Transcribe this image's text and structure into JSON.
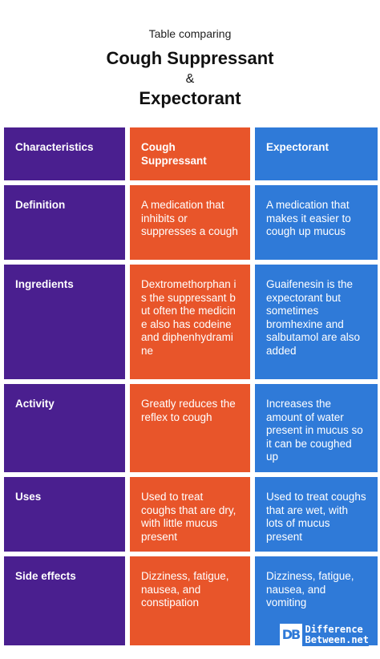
{
  "header": {
    "subtitle": "Table comparing",
    "title_line1": "Cough Suppressant",
    "ampersand": "&",
    "title_line2": "Expectorant"
  },
  "table": {
    "columns": [
      "Characteristics",
      "Cough Suppressant",
      "Expectorant"
    ],
    "rows": [
      {
        "label": "Definition",
        "cough_suppressant": "A medication that inhibits or suppresses a cough",
        "expectorant": "A medication that makes it easier to cough up mucus"
      },
      {
        "label": "Ingredients",
        "cough_suppressant": "Dextromethorphan is the suppressant but often the medicine also has codeine and diphenhydramine",
        "expectorant": "Guaifenesin is the expectorant but sometimes bromhexine and salbutamol are also added"
      },
      {
        "label": "Activity",
        "cough_suppressant": "Greatly reduces the reflex to cough",
        "expectorant": "Increases the amount of water present in mucus so it can be coughed up"
      },
      {
        "label": "Uses",
        "cough_suppressant": "Used to treat coughs that are dry, with little mucus present",
        "expectorant": "Used to treat coughs that are wet, with lots of mucus present"
      },
      {
        "label": "Side effects",
        "cough_suppressant": "Dizziness, fatigue, nausea, and constipation",
        "expectorant": "Dizziness, fatigue, nausea, and vomiting"
      }
    ]
  },
  "logo": {
    "mark": "DB",
    "line1": "Difference",
    "line2": "Between.net"
  },
  "colors": {
    "characteristics": "#4a1f8f",
    "cough_suppressant": "#e8552a",
    "expectorant": "#2f7ad8"
  }
}
